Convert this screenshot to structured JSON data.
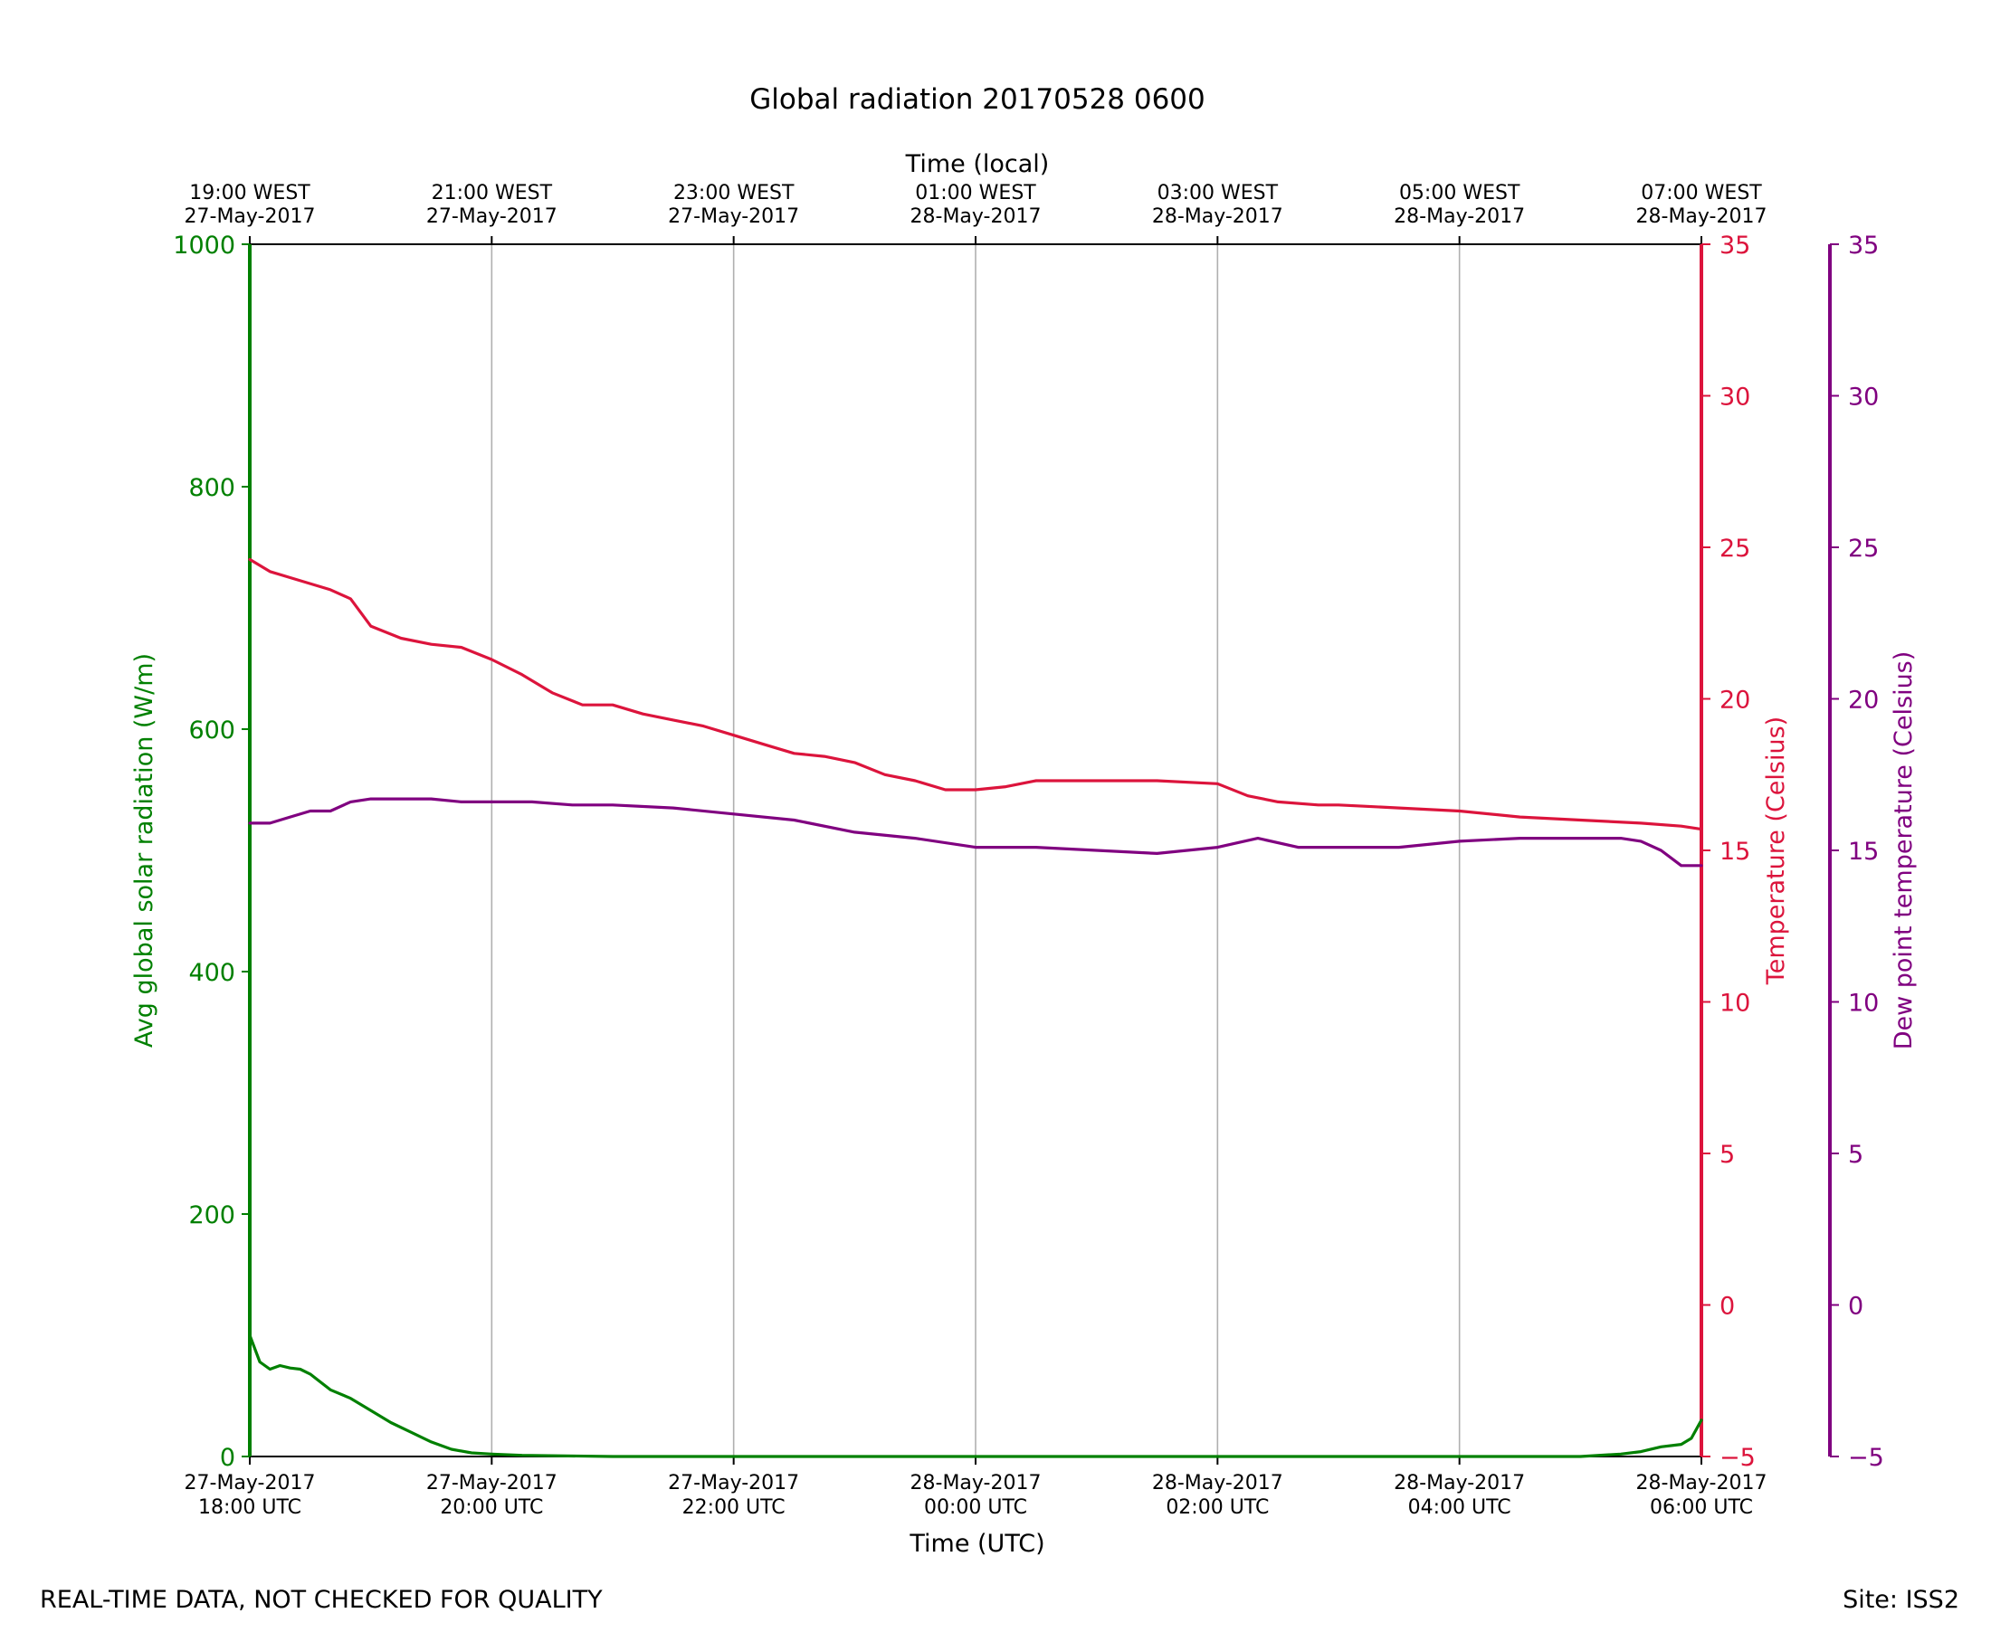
{
  "chart_data": {
    "type": "line",
    "title": "Global radiation 20170528 0600",
    "xlabel": "Time (UTC)",
    "x2label": "Time (local)",
    "ylabel": "Avg global solar radiation (W/m)",
    "y2label": "Temperature (Celsius)",
    "y3label": "Dew point temperature (Celsius)",
    "xlim": [
      "2017-05-27T18:00",
      "2017-05-28T06:00"
    ],
    "ylim": [
      0,
      1000
    ],
    "y2lim": [
      -5,
      35
    ],
    "y3lim": [
      -5,
      35
    ],
    "grid": "vertical",
    "colors": {
      "radiation": "#008000",
      "temperature": "#dc143c",
      "dewpoint": "#800080"
    },
    "x_ticks": [
      "2017-05-27T18:00",
      "2017-05-27T20:00",
      "2017-05-27T22:00",
      "2017-05-28T00:00",
      "2017-05-28T02:00",
      "2017-05-28T04:00",
      "2017-05-28T06:00"
    ],
    "x_tick_labels": [
      [
        "27-May-2017",
        "18:00 UTC"
      ],
      [
        "27-May-2017",
        "20:00 UTC"
      ],
      [
        "27-May-2017",
        "22:00 UTC"
      ],
      [
        "28-May-2017",
        "00:00 UTC"
      ],
      [
        "28-May-2017",
        "02:00 UTC"
      ],
      [
        "28-May-2017",
        "04:00 UTC"
      ],
      [
        "28-May-2017",
        "06:00 UTC"
      ]
    ],
    "x2_tick_labels": [
      [
        "19:00 WEST",
        "27-May-2017"
      ],
      [
        "21:00 WEST",
        "27-May-2017"
      ],
      [
        "23:00 WEST",
        "27-May-2017"
      ],
      [
        "01:00 WEST",
        "28-May-2017"
      ],
      [
        "03:00 WEST",
        "28-May-2017"
      ],
      [
        "05:00 WEST",
        "28-May-2017"
      ],
      [
        "07:00 WEST",
        "28-May-2017"
      ]
    ],
    "y_ticks": [
      "0",
      "200",
      "400",
      "600",
      "800",
      "1000"
    ],
    "y2_ticks": [
      "−5",
      "0",
      "5",
      "10",
      "15",
      "20",
      "25",
      "30",
      "35"
    ],
    "y3_ticks": [
      "−5",
      "0",
      "5",
      "10",
      "15",
      "20",
      "25",
      "30",
      "35"
    ],
    "series": [
      {
        "key": "radiation",
        "axis": "y",
        "x": [
          "2017-05-27T18:00",
          "2017-05-27T18:05",
          "2017-05-27T18:10",
          "2017-05-27T18:15",
          "2017-05-27T18:20",
          "2017-05-27T18:25",
          "2017-05-27T18:30",
          "2017-05-27T18:40",
          "2017-05-27T18:50",
          "2017-05-27T19:00",
          "2017-05-27T19:10",
          "2017-05-27T19:20",
          "2017-05-27T19:30",
          "2017-05-27T19:40",
          "2017-05-27T19:50",
          "2017-05-27T20:00",
          "2017-05-27T20:15",
          "2017-05-27T21:00",
          "2017-05-28T03:00",
          "2017-05-28T05:00",
          "2017-05-28T05:20",
          "2017-05-28T05:30",
          "2017-05-28T05:40",
          "2017-05-28T05:50",
          "2017-05-28T05:55",
          "2017-05-28T06:00"
        ],
        "y": [
          100,
          78,
          72,
          75,
          73,
          72,
          68,
          55,
          48,
          38,
          28,
          20,
          12,
          6,
          3,
          2,
          1,
          0,
          0,
          0,
          2,
          4,
          8,
          10,
          15,
          30
        ]
      },
      {
        "key": "temperature",
        "axis": "y2",
        "x": [
          "2017-05-27T18:00",
          "2017-05-27T18:10",
          "2017-05-27T18:20",
          "2017-05-27T18:40",
          "2017-05-27T18:50",
          "2017-05-27T19:00",
          "2017-05-27T19:15",
          "2017-05-27T19:30",
          "2017-05-27T19:45",
          "2017-05-27T20:00",
          "2017-05-27T20:15",
          "2017-05-27T20:30",
          "2017-05-27T20:45",
          "2017-05-27T21:00",
          "2017-05-27T21:15",
          "2017-05-27T21:30",
          "2017-05-27T21:45",
          "2017-05-27T22:00",
          "2017-05-27T22:15",
          "2017-05-27T22:30",
          "2017-05-27T22:45",
          "2017-05-27T23:00",
          "2017-05-27T23:15",
          "2017-05-27T23:30",
          "2017-05-27T23:45",
          "2017-05-28T00:00",
          "2017-05-28T00:15",
          "2017-05-28T00:30",
          "2017-05-28T01:00",
          "2017-05-28T01:30",
          "2017-05-28T02:00",
          "2017-05-28T02:15",
          "2017-05-28T02:30",
          "2017-05-28T02:50",
          "2017-05-28T03:00",
          "2017-05-28T03:30",
          "2017-05-28T04:00",
          "2017-05-28T04:30",
          "2017-05-28T05:00",
          "2017-05-28T05:30",
          "2017-05-28T05:50",
          "2017-05-28T06:00"
        ],
        "y": [
          24.6,
          24.2,
          24.0,
          23.6,
          23.3,
          22.4,
          22.0,
          21.8,
          21.7,
          21.3,
          20.8,
          20.2,
          19.8,
          19.8,
          19.5,
          19.3,
          19.1,
          18.8,
          18.5,
          18.2,
          18.1,
          17.9,
          17.5,
          17.3,
          17.0,
          17.0,
          17.1,
          17.3,
          17.3,
          17.3,
          17.2,
          16.8,
          16.6,
          16.5,
          16.5,
          16.4,
          16.3,
          16.1,
          16.0,
          15.9,
          15.8,
          15.7
        ]
      },
      {
        "key": "dewpoint",
        "axis": "y3",
        "x": [
          "2017-05-27T18:00",
          "2017-05-27T18:10",
          "2017-05-27T18:20",
          "2017-05-27T18:30",
          "2017-05-27T18:40",
          "2017-05-27T18:50",
          "2017-05-27T19:00",
          "2017-05-27T19:15",
          "2017-05-27T19:30",
          "2017-05-27T19:45",
          "2017-05-27T20:00",
          "2017-05-27T20:20",
          "2017-05-27T20:40",
          "2017-05-27T21:00",
          "2017-05-27T21:30",
          "2017-05-27T22:00",
          "2017-05-27T22:30",
          "2017-05-27T23:00",
          "2017-05-27T23:30",
          "2017-05-28T00:00",
          "2017-05-28T00:30",
          "2017-05-28T01:00",
          "2017-05-28T01:30",
          "2017-05-28T02:00",
          "2017-05-28T02:20",
          "2017-05-28T02:40",
          "2017-05-28T03:00",
          "2017-05-28T03:30",
          "2017-05-28T04:00",
          "2017-05-28T04:30",
          "2017-05-28T05:00",
          "2017-05-28T05:20",
          "2017-05-28T05:30",
          "2017-05-28T05:40",
          "2017-05-28T05:50",
          "2017-05-28T06:00"
        ],
        "y": [
          15.9,
          15.9,
          16.1,
          16.3,
          16.3,
          16.6,
          16.7,
          16.7,
          16.7,
          16.6,
          16.6,
          16.6,
          16.5,
          16.5,
          16.4,
          16.2,
          16.0,
          15.6,
          15.4,
          15.1,
          15.1,
          15.0,
          14.9,
          15.1,
          15.4,
          15.1,
          15.1,
          15.1,
          15.3,
          15.4,
          15.4,
          15.4,
          15.3,
          15.0,
          14.5,
          14.5
        ]
      }
    ]
  },
  "footer": {
    "left_note": "REAL-TIME DATA, NOT CHECKED FOR QUALITY",
    "site": "Site: ISS2"
  }
}
